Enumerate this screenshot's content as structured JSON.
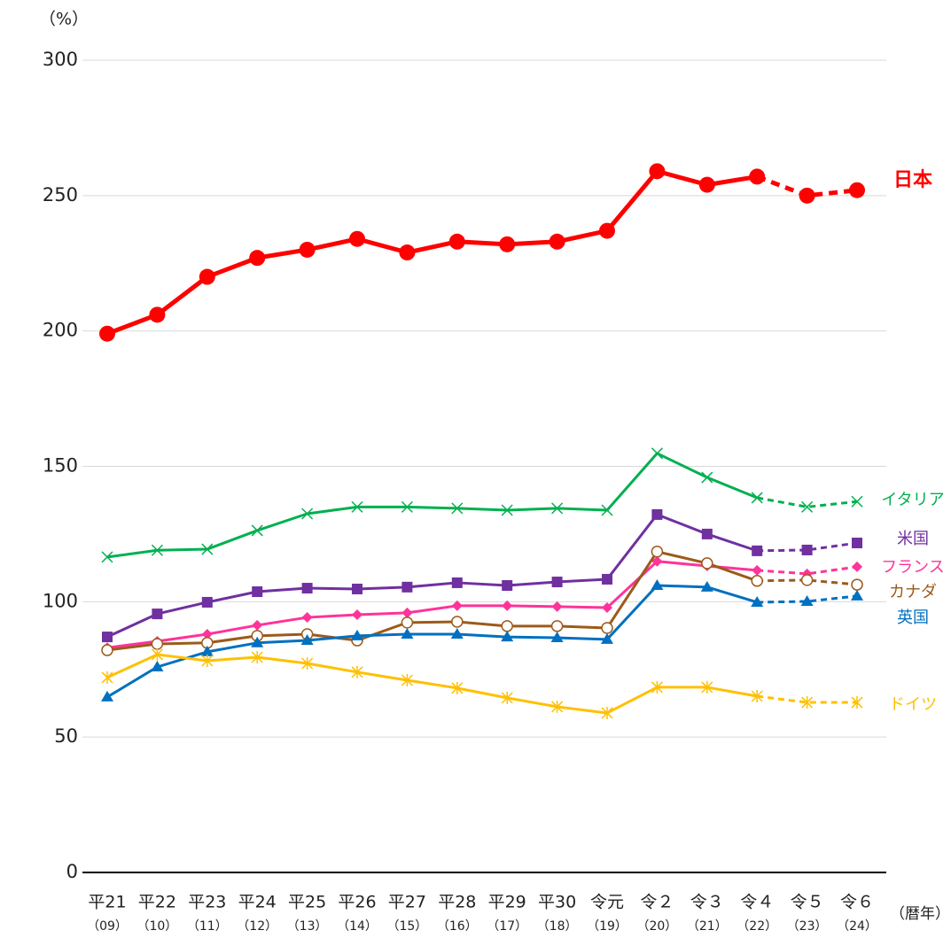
{
  "chart_data": {
    "type": "line",
    "y_axis_label": "（%）",
    "x_axis_label": "（暦年）",
    "categories": [
      "平21",
      "平22",
      "平23",
      "平24",
      "平25",
      "平26",
      "平27",
      "平28",
      "平29",
      "平30",
      "令元",
      "令２",
      "令３",
      "令４",
      "令５",
      "令６"
    ],
    "category_years": [
      "（09）",
      "（10）",
      "（11）",
      "（12）",
      "（13）",
      "（14）",
      "（15）",
      "（16）",
      "（17）",
      "（18）",
      "（19）",
      "（20）",
      "（21）",
      "（22）",
      "（23）",
      "（24）"
    ],
    "dashed_from": 13,
    "ylim": [
      0,
      300
    ],
    "yticks": [
      0,
      50,
      100,
      150,
      200,
      250,
      300
    ],
    "grid": true,
    "series": [
      {
        "name": "日本",
        "color": "#ff0000",
        "marker": "circle",
        "values": [
          199,
          206,
          220,
          227,
          230,
          234,
          229,
          233,
          232,
          233,
          237,
          259,
          254,
          257,
          250,
          252
        ]
      },
      {
        "name": "イタリア",
        "color": "#00b050",
        "marker": "x",
        "values": [
          116.5,
          119,
          119.4,
          126.3,
          132.5,
          135,
          135,
          134.5,
          133.8,
          134.5,
          133.8,
          154.8,
          145.9,
          138.4,
          135,
          137
        ]
      },
      {
        "name": "米国",
        "color": "#7030a0",
        "marker": "square",
        "values": [
          87,
          95.5,
          99.8,
          103.7,
          105,
          104.7,
          105.4,
          107,
          106,
          107.3,
          108.3,
          132.2,
          125,
          118.8,
          119.1,
          121.7
        ]
      },
      {
        "name": "フランス",
        "color": "#ff3399",
        "marker": "diamond",
        "values": [
          83,
          85.4,
          88,
          91.3,
          94.2,
          95.2,
          95.9,
          98.5,
          98.5,
          98.2,
          97.8,
          114.9,
          113.2,
          111.6,
          110.3,
          112.9
        ]
      },
      {
        "name": "カナダ",
        "color": "#9c5a1a",
        "marker": "open-circle",
        "values": [
          82.1,
          84.4,
          84.8,
          87.4,
          88,
          85.7,
          92.3,
          92.6,
          91,
          91,
          90.3,
          118.5,
          114.2,
          107.7,
          108,
          106.3
        ]
      },
      {
        "name": "英国",
        "color": "#0070c0",
        "marker": "triangle",
        "values": [
          64.8,
          75.9,
          81.5,
          84.8,
          85.7,
          87.4,
          88,
          88,
          87,
          86.7,
          86.1,
          106,
          105.4,
          99.8,
          100.1,
          102.1
        ]
      },
      {
        "name": "ドイツ",
        "color": "#ffc000",
        "marker": "asterisk",
        "values": [
          72,
          80.5,
          78.2,
          79.5,
          77.2,
          74,
          71,
          68.1,
          64.5,
          61.2,
          58.9,
          68.4,
          68.4,
          65.1,
          62.8,
          62.8
        ]
      }
    ]
  }
}
